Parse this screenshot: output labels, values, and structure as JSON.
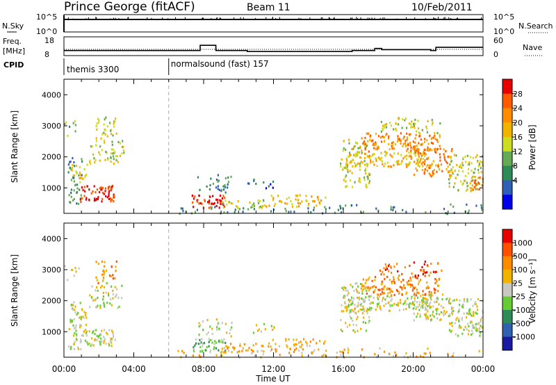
{
  "header": {
    "station": "Prince George (fitACF)",
    "beam": "Beam 11",
    "date": "10/Feb/2011"
  },
  "strip_labels": {
    "nsky": "N.Sky",
    "freq_top": "Freq.",
    "freq_unit": "[MHz]",
    "cpid": "CPID",
    "nsearch": "N.Search",
    "nave": "Nave"
  },
  "strip_ticks": {
    "nsky_left": [
      "10^5",
      "10^0"
    ],
    "nsky_right": [
      "10^5",
      "10^0"
    ],
    "freq_left": [
      "18",
      "8"
    ],
    "nave_right": [
      "60",
      "0"
    ]
  },
  "cpid_modes": [
    {
      "label": "themis 3300",
      "start_h": 0.0,
      "end_h": 6.0
    },
    {
      "label": "normalsound (fast) 157",
      "start_h": 6.0,
      "end_h": 24.0
    }
  ],
  "frequency_MHz": [
    {
      "start_h": 0.0,
      "end_h": 7.8,
      "value": 10.7
    },
    {
      "start_h": 7.8,
      "end_h": 8.7,
      "value": 13.5
    },
    {
      "start_h": 8.7,
      "end_h": 10.5,
      "value": 10.7
    },
    {
      "start_h": 10.5,
      "end_h": 16.5,
      "value": 10.2
    },
    {
      "start_h": 16.5,
      "end_h": 17.8,
      "value": 10.7
    },
    {
      "start_h": 17.8,
      "end_h": 18.2,
      "value": 11.8
    },
    {
      "start_h": 18.2,
      "end_h": 21.0,
      "value": 11.2
    },
    {
      "start_h": 21.0,
      "end_h": 21.3,
      "value": 10.7
    },
    {
      "start_h": 21.3,
      "end_h": 24.0,
      "value": 12.4
    }
  ],
  "nave_level": 20,
  "panels": {
    "power": {
      "ylabel": "Slant Range [km]",
      "colorbar_label": "Power [dB]",
      "colorbar_ticks": [
        "28",
        "24",
        "20",
        "16",
        "12",
        "8",
        "4"
      ],
      "colors": [
        "#0000e6",
        "#2f5fb4",
        "#2e8b57",
        "#66aa55",
        "#ccdd22",
        "#f0b400",
        "#ff8c00",
        "#ff5a00",
        "#e60000"
      ]
    },
    "velocity": {
      "ylabel": "Slant Range [km]",
      "colorbar_label": "Velocity [m s⁻¹]",
      "colorbar_ticks": [
        "1000",
        "500",
        "100",
        "25",
        "-25",
        "-100",
        "-500",
        "-1000"
      ],
      "colors": [
        "#1a1aa0",
        "#3060b0",
        "#2e8b57",
        "#66cc33",
        "#c8c8c0",
        "#f0b400",
        "#ff8c00",
        "#ff5000",
        "#e60000"
      ]
    }
  },
  "chart_data": {
    "type": "heatmap",
    "title": "Prince George (fitACF)  Beam 11  10/Feb/2011",
    "xlabel": "Time UT",
    "ylabel": "Slant Range [km]",
    "x_ticks": [
      "00:00",
      "04:00",
      "08:00",
      "12:00",
      "16:00",
      "20:00",
      "00:00"
    ],
    "y_ticks": [
      "1000",
      "2000",
      "3000",
      "4000"
    ],
    "xlim_hours": [
      0,
      24
    ],
    "ylim_km": [
      180,
      4500
    ],
    "scatter_regions": [
      {
        "t0": 0.2,
        "t1": 1.0,
        "r0": 450,
        "r1": 2000,
        "density": 0.5,
        "pw": 2,
        "vel": 4
      },
      {
        "t0": 0.9,
        "t1": 2.9,
        "r0": 580,
        "r1": 1100,
        "density": 0.95,
        "pw": 8,
        "vel": 4
      },
      {
        "t0": 0.3,
        "t1": 1.3,
        "r0": 1200,
        "r1": 1800,
        "density": 0.6,
        "pw": 5,
        "vel": 4
      },
      {
        "t0": 1.4,
        "t1": 3.4,
        "r0": 1800,
        "r1": 2600,
        "density": 0.5,
        "pw": 4,
        "vel": 4
      },
      {
        "t0": 1.8,
        "t1": 3.0,
        "r0": 2600,
        "r1": 3300,
        "density": 0.55,
        "pw": 4,
        "vel": 6
      },
      {
        "t0": 0.0,
        "t1": 0.9,
        "r0": 2700,
        "r1": 3200,
        "density": 0.3,
        "pw": 3,
        "vel": 4
      },
      {
        "t0": 7.3,
        "t1": 9.2,
        "r0": 380,
        "r1": 800,
        "density": 0.95,
        "pw": 8,
        "vel": 3
      },
      {
        "t0": 9.0,
        "t1": 11.5,
        "r0": 350,
        "r1": 650,
        "density": 0.7,
        "pw": 4,
        "vel": 5
      },
      {
        "t0": 11.5,
        "t1": 15.0,
        "r0": 420,
        "r1": 800,
        "density": 0.55,
        "pw": 5,
        "vel": 5
      },
      {
        "t0": 7.6,
        "t1": 9.6,
        "r0": 880,
        "r1": 1450,
        "density": 0.4,
        "pw": 2,
        "vel": 4
      },
      {
        "t0": 10.5,
        "t1": 12.0,
        "r0": 1000,
        "r1": 1300,
        "density": 0.4,
        "pw": 1,
        "vel": 4
      },
      {
        "t0": 6.5,
        "t1": 16.0,
        "r0": 200,
        "r1": 420,
        "density": 0.3,
        "pw": 2,
        "vel": 5
      },
      {
        "t0": 15.8,
        "t1": 17.5,
        "r0": 1000,
        "r1": 2600,
        "density": 0.55,
        "pw": 4,
        "vel": 4
      },
      {
        "t0": 16.0,
        "t1": 21.0,
        "r0": 1700,
        "r1": 2200,
        "density": 0.75,
        "pw": 5,
        "vel": 4
      },
      {
        "t0": 17.0,
        "t1": 21.5,
        "r0": 2200,
        "r1": 2800,
        "density": 0.8,
        "pw": 6,
        "vel": 6
      },
      {
        "t0": 18.0,
        "t1": 21.6,
        "r0": 2800,
        "r1": 3300,
        "density": 0.45,
        "pw": 4,
        "vel": 7
      },
      {
        "t0": 20.0,
        "t1": 22.2,
        "r0": 1400,
        "r1": 2300,
        "density": 0.75,
        "pw": 6,
        "vel": 4
      },
      {
        "t0": 22.0,
        "t1": 24.0,
        "r0": 900,
        "r1": 2100,
        "density": 0.6,
        "pw": 4,
        "vel": 4
      },
      {
        "t0": 23.2,
        "t1": 24.0,
        "r0": 900,
        "r1": 1400,
        "density": 0.85,
        "pw": 6,
        "vel": 4
      },
      {
        "t0": 15.5,
        "t1": 24.0,
        "r0": 200,
        "r1": 500,
        "density": 0.2,
        "pw": 2,
        "vel": 5
      }
    ]
  }
}
